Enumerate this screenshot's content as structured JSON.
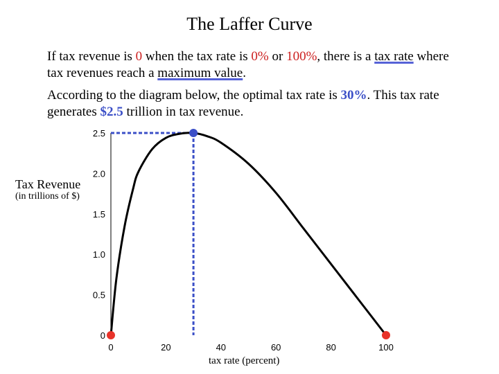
{
  "title": "The Laffer Curve",
  "intro": {
    "t1": "If tax revenue is ",
    "zero": "0",
    "t2": " when the tax rate is ",
    "zero_pct": "0%",
    "t3": " or ",
    "hundred_pct": "100%",
    "t4": ", there is a ",
    "tax_rate_term": "tax rate",
    "t5": " where tax revenues reach a ",
    "max_term": "maximum value",
    "t6": "."
  },
  "optimal": {
    "t1": "According to the diagram below, the optimal tax rate is ",
    "rate": "30%",
    "t2": ". This tax rate generates ",
    "revenue": "$2.5",
    "t3": " trillion in tax revenue."
  },
  "colors": {
    "curve": "#000000",
    "endpoint": "#e8332a",
    "peak": "#3b4fc7",
    "guide": "#3b4fc7"
  },
  "chart_data": {
    "type": "line",
    "title": "",
    "xlabel": "tax rate   (percent)",
    "ylabel": "Tax Revenue",
    "ylabel_sub": "(in trillions of $)",
    "xlim": [
      0,
      100
    ],
    "ylim": [
      0,
      2.5
    ],
    "x_ticks": [
      "0",
      "20",
      "40",
      "60",
      "80",
      "100"
    ],
    "y_ticks": [
      "0",
      "0.5",
      "1.0",
      "1.5",
      "2.0",
      "2.5"
    ],
    "grid": false,
    "series": [
      {
        "x": [
          0,
          2,
          5,
          8,
          10,
          15,
          20,
          25,
          30,
          35,
          40,
          50,
          60,
          70,
          80,
          90,
          100
        ],
        "y": [
          0,
          0.7,
          1.35,
          1.8,
          2.02,
          2.3,
          2.44,
          2.49,
          2.5,
          2.46,
          2.38,
          2.12,
          1.76,
          1.32,
          0.88,
          0.44,
          0
        ]
      }
    ],
    "points": [
      {
        "x": 0,
        "y": 0,
        "kind": "endpoint"
      },
      {
        "x": 100,
        "y": 0,
        "kind": "endpoint"
      },
      {
        "x": 30,
        "y": 2.5,
        "kind": "peak"
      }
    ],
    "guides": {
      "x": 30,
      "y": 2.5
    }
  }
}
